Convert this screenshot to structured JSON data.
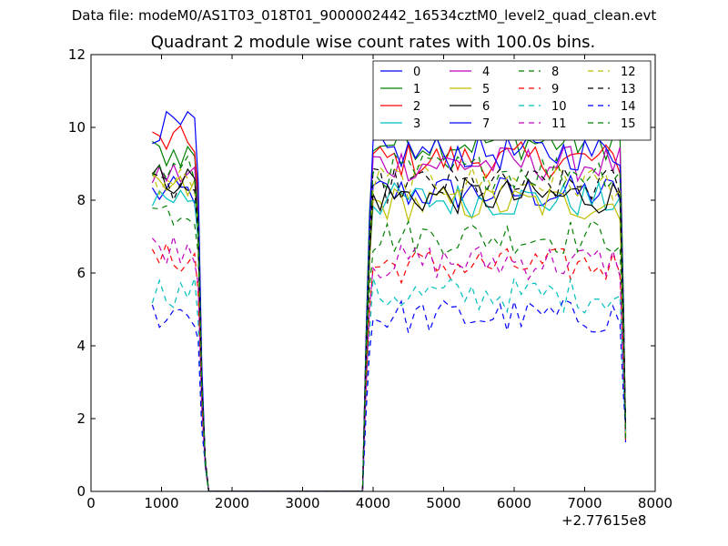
{
  "figure": {
    "suptitle": "Data file: modeM0/AS1T03_018T01_9000002442_16534cztM0_level2_quad_clean.evt",
    "offset_text": "+2.77615e8"
  },
  "chart_data": {
    "type": "line",
    "title": "Quadrant 2 module wise count rates with 100.0s bins.",
    "xlabel": "",
    "ylabel": "",
    "xlim": [
      0,
      8000
    ],
    "ylim": [
      0,
      12
    ],
    "x_offset": 277615000,
    "xticks": [
      0,
      1000,
      2000,
      3000,
      4000,
      5000,
      6000,
      7000,
      8000
    ],
    "yticks": [
      0,
      2,
      4,
      6,
      8,
      10,
      12
    ],
    "legend_location": "upper right",
    "legend_columns": 4,
    "x": [
      870,
      970,
      1070,
      1170,
      1270,
      1370,
      1470,
      1520,
      1570,
      1620,
      1670,
      1720,
      3850,
      3900,
      3950,
      4000,
      4100,
      4200,
      4300,
      4400,
      4500,
      4600,
      4700,
      4800,
      4900,
      5000,
      5100,
      5200,
      5300,
      5400,
      5500,
      5600,
      5700,
      5800,
      5900,
      6000,
      6100,
      6200,
      6300,
      6400,
      6500,
      6600,
      6700,
      6800,
      6900,
      7000,
      7100,
      7200,
      7300,
      7400,
      7500,
      7550,
      7580
    ],
    "gap_x": [
      2000,
      2500,
      3000,
      3500
    ],
    "series": [
      {
        "name": "0",
        "color": "#0000ff",
        "dash": "solid",
        "base": 8.2,
        "peak": 8.2
      },
      {
        "name": "1",
        "color": "#008000",
        "dash": "solid",
        "base": 9.3,
        "peak": 9.6
      },
      {
        "name": "2",
        "color": "#ff0000",
        "dash": "solid",
        "base": 9.6,
        "peak": 9.1
      },
      {
        "name": "3",
        "color": "#00bfbf",
        "dash": "solid",
        "base": 8.1,
        "peak": 8.0
      },
      {
        "name": "4",
        "color": "#bf00bf",
        "dash": "solid",
        "base": 8.7,
        "peak": 9.0
      },
      {
        "name": "5",
        "color": "#bfbf00",
        "dash": "solid",
        "base": 8.3,
        "peak": 7.9
      },
      {
        "name": "6",
        "color": "#000000",
        "dash": "solid",
        "base": 8.6,
        "peak": 8.1
      },
      {
        "name": "7",
        "color": "#0000ff",
        "dash": "solid",
        "base": 10.0,
        "peak": 9.3
      },
      {
        "name": "8",
        "color": "#008000",
        "dash": "dashed",
        "base": 7.7,
        "peak": 7.0
      },
      {
        "name": "9",
        "color": "#ff0000",
        "dash": "dashed",
        "base": 6.4,
        "peak": 6.2
      },
      {
        "name": "10",
        "color": "#00bfbf",
        "dash": "dashed",
        "base": 5.5,
        "peak": 5.4
      },
      {
        "name": "11",
        "color": "#bf00bf",
        "dash": "dashed",
        "base": 6.7,
        "peak": 6.3
      },
      {
        "name": "12",
        "color": "#bfbf00",
        "dash": "dashed",
        "base": 8.5,
        "peak": 8.5
      },
      {
        "name": "13",
        "color": "#000000",
        "dash": "dashed",
        "base": 8.3,
        "peak": 8.4
      },
      {
        "name": "14",
        "color": "#0000ff",
        "dash": "dashed",
        "base": 4.9,
        "peak": 4.8
      },
      {
        "name": "15",
        "color": "#008000",
        "dash": "dashed",
        "base": 8.8,
        "peak": 8.8
      }
    ]
  }
}
